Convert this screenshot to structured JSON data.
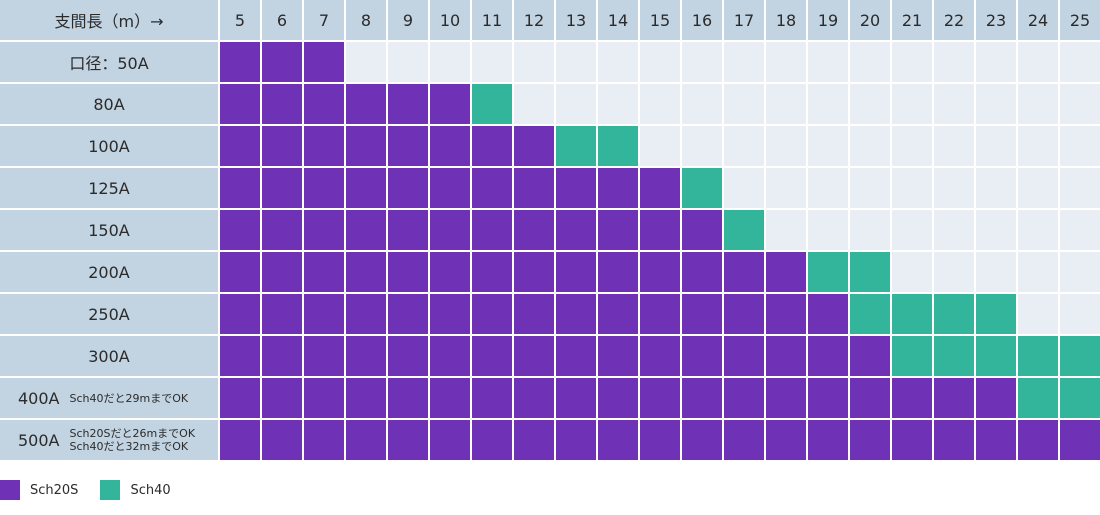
{
  "header_label": "支間長（m）→",
  "colors": {
    "sch20s": "#6f31b5",
    "sch40": "#33b59b",
    "empty": "#e9edf4",
    "header": "#c2d3e2"
  },
  "legend": [
    {
      "label": "Sch20S",
      "color": "#6f31b5"
    },
    {
      "label": "Sch40",
      "color": "#33b59b"
    }
  ],
  "chart_data": {
    "type": "table",
    "columns": [
      "5",
      "6",
      "7",
      "8",
      "9",
      "10",
      "11",
      "12",
      "13",
      "14",
      "15",
      "16",
      "17",
      "18",
      "19",
      "20",
      "21",
      "22",
      "23",
      "24",
      "25"
    ],
    "rows": [
      {
        "label": "口径：50A",
        "note": "",
        "sch20s_max": 7,
        "sch40_max": 7
      },
      {
        "label": "80A",
        "note": "",
        "sch20s_max": 10,
        "sch40_max": 11
      },
      {
        "label": "100A",
        "note": "",
        "sch20s_max": 12,
        "sch40_max": 14
      },
      {
        "label": "125A",
        "note": "",
        "sch20s_max": 15,
        "sch40_max": 16
      },
      {
        "label": "150A",
        "note": "",
        "sch20s_max": 16,
        "sch40_max": 17
      },
      {
        "label": "200A",
        "note": "",
        "sch20s_max": 18,
        "sch40_max": 20
      },
      {
        "label": "250A",
        "note": "",
        "sch20s_max": 19,
        "sch40_max": 23
      },
      {
        "label": "300A",
        "note": "",
        "sch20s_max": 20,
        "sch40_max": 25
      },
      {
        "label": "400A",
        "note": "Sch40だと29mまでOK",
        "sch20s_max": 23,
        "sch40_max": 25
      },
      {
        "label": "500A",
        "note": "Sch20Sだと26mまでOK\nSch40だと32mまでOK",
        "sch20s_max": 25,
        "sch40_max": 25
      }
    ]
  }
}
